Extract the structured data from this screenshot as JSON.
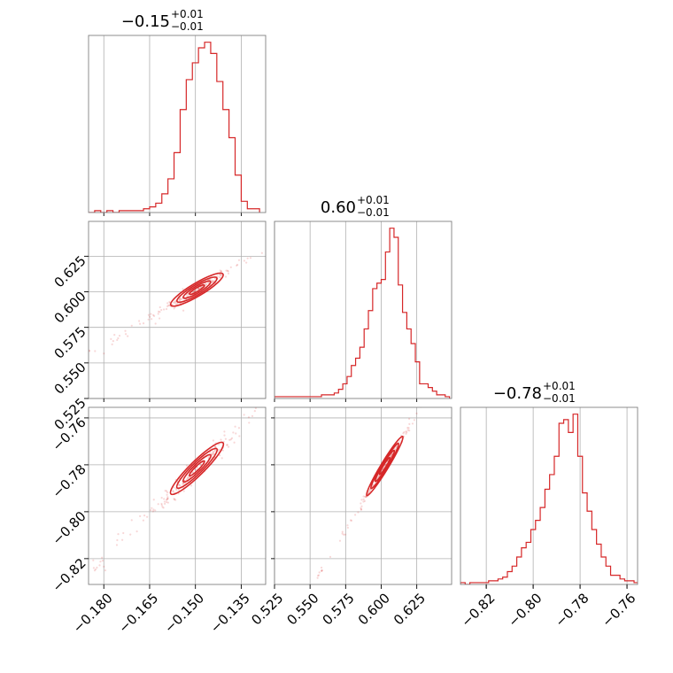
{
  "chart_data": {
    "type": "corner",
    "color": "#d62728",
    "grid": true,
    "parameters": [
      {
        "title": {
          "median": "−0.15",
          "plus": "+0.01",
          "minus": "−0.01"
        },
        "xlim": [
          -0.185,
          -0.127
        ],
        "ticks": [
          -0.18,
          -0.165,
          -0.15,
          -0.135
        ],
        "tick_labels": [
          "−0.180",
          "−0.165",
          "−0.150",
          "−0.135"
        ],
        "histogram": {
          "bins": [
            -0.185,
            -0.183,
            -0.181,
            -0.179,
            -0.177,
            -0.175,
            -0.173,
            -0.171,
            -0.169,
            -0.167,
            -0.165,
            -0.163,
            -0.161,
            -0.159,
            -0.157,
            -0.155,
            -0.153,
            -0.151,
            -0.149,
            -0.147,
            -0.145,
            -0.143,
            -0.141,
            -0.139,
            -0.137,
            -0.135,
            -0.133,
            -0.131,
            -0.129
          ],
          "counts": [
            0,
            1,
            0,
            1,
            0,
            1,
            1,
            1,
            1,
            2,
            3,
            5,
            10,
            18,
            32,
            55,
            71,
            80,
            88,
            91,
            85,
            70,
            55,
            40,
            20,
            6,
            2,
            2
          ]
        }
      },
      {
        "title": {
          "median": "0.60",
          "plus": "+0.01",
          "minus": "−0.01"
        },
        "xlim": [
          0.525,
          0.6495
        ],
        "ylim": [
          0.525,
          0.6495
        ],
        "ticks": [
          0.525,
          0.55,
          0.575,
          0.6,
          0.625
        ],
        "tick_labels": [
          "0.525",
          "0.550",
          "0.575",
          "0.600",
          "0.625"
        ],
        "histogram": {
          "bins": [
            0.525,
            0.528,
            0.531,
            0.534,
            0.537,
            0.54,
            0.543,
            0.546,
            0.549,
            0.552,
            0.555,
            0.558,
            0.561,
            0.564,
            0.567,
            0.57,
            0.573,
            0.576,
            0.579,
            0.582,
            0.585,
            0.588,
            0.591,
            0.594,
            0.597,
            0.6,
            0.603,
            0.606,
            0.609,
            0.612,
            0.615,
            0.618,
            0.621,
            0.624,
            0.627,
            0.63,
            0.633,
            0.636,
            0.639,
            0.642,
            0.645,
            0.648
          ],
          "counts": [
            1,
            1,
            1,
            1,
            1,
            1,
            1,
            1,
            1,
            1,
            1,
            2,
            2,
            2,
            3,
            5,
            8,
            12,
            18,
            22,
            28,
            38,
            48,
            60,
            63,
            65,
            80,
            93,
            88,
            62,
            47,
            38,
            30,
            20,
            8,
            8,
            6,
            4,
            2,
            2,
            1
          ]
        }
      },
      {
        "title": {
          "median": "−0.78",
          "plus": "+0.01",
          "minus": "−0.01"
        },
        "xlim": [
          -0.831,
          -0.7555
        ],
        "ylim": [
          -0.831,
          -0.7555
        ],
        "ticks": [
          -0.82,
          -0.8,
          -0.78,
          -0.76
        ],
        "tick_labels": [
          "−0.82",
          "−0.80",
          "−0.78",
          "−0.76"
        ],
        "histogram": {
          "bins": [
            -0.831,
            -0.829,
            -0.827,
            -0.825,
            -0.823,
            -0.821,
            -0.819,
            -0.817,
            -0.815,
            -0.813,
            -0.811,
            -0.809,
            -0.807,
            -0.805,
            -0.803,
            -0.801,
            -0.799,
            -0.797,
            -0.795,
            -0.793,
            -0.791,
            -0.789,
            -0.787,
            -0.785,
            -0.783,
            -0.781,
            -0.779,
            -0.777,
            -0.775,
            -0.773,
            -0.771,
            -0.769,
            -0.767,
            -0.765,
            -0.763,
            -0.761,
            -0.759,
            -0.757,
            -0.755
          ],
          "counts": [
            1,
            0,
            1,
            1,
            1,
            1,
            2,
            2,
            3,
            4,
            7,
            10,
            15,
            20,
            23,
            30,
            35,
            42,
            52,
            60,
            70,
            88,
            90,
            83,
            93,
            70,
            50,
            40,
            30,
            22,
            15,
            10,
            5,
            5,
            3,
            2,
            2,
            1
          ]
        }
      }
    ],
    "scatter_panels": [
      {
        "x_param": 0,
        "y_param": 1,
        "slope": 1.28,
        "center": [
          -0.1495,
          0.6015
        ],
        "major_sd": 0.0066,
        "minor_sd": 0.0012,
        "tail_from": -0.184,
        "tail_to": -0.127
      },
      {
        "x_param": 0,
        "y_param": 2,
        "slope": 1.28,
        "center": [
          -0.1495,
          -0.7815
        ],
        "major_sd": 0.0066,
        "minor_sd": 0.0012,
        "tail_from": -0.184,
        "tail_to": -0.127
      },
      {
        "x_param": 1,
        "y_param": 2,
        "slope": 1.0,
        "center": [
          0.6025,
          -0.7805
        ],
        "major_sd": 0.0085,
        "minor_sd": 0.0007,
        "tail_from": 0.527,
        "tail_to": 0.648
      }
    ]
  }
}
